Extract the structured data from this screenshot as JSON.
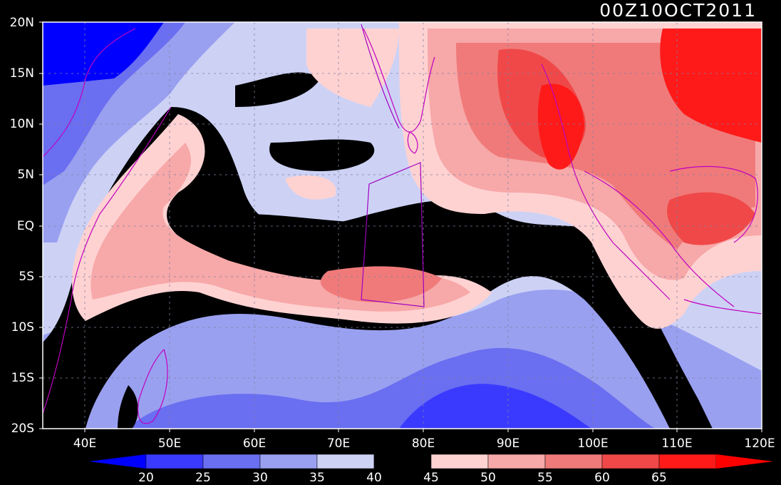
{
  "stamp": "00Z10OCT2011",
  "lat_labels": [
    "20N",
    "15N",
    "10N",
    "5N",
    "EQ",
    "5S",
    "10S",
    "15S",
    "20S"
  ],
  "lon_labels": [
    "40E",
    "50E",
    "60E",
    "70E",
    "80E",
    "90E",
    "100E",
    "110E",
    "120E"
  ],
  "colorbar": {
    "labels": [
      "20",
      "25",
      "30",
      "35",
      "40",
      "45",
      "50",
      "55",
      "60",
      "65"
    ],
    "colors": [
      "#0000ff",
      "#3a3aff",
      "#6a6ef0",
      "#9aa0f0",
      "#cdd2f5",
      "#000000",
      "#ffd2d2",
      "#f7a8a8",
      "#f07a7a",
      "#f04848",
      "#ff1a1a",
      "#ff0000"
    ]
  },
  "palette": {
    "deep_blue": "#0000ff",
    "blue": "#3a3aff",
    "mid_blue": "#6a6ef0",
    "light_blue": "#9aa0f0",
    "pale_blue": "#cdd2f5",
    "black": "#000000",
    "pale_red": "#ffd2d2",
    "light_red": "#f7a8a8",
    "mid_red": "#f07a7a",
    "red": "#f04848",
    "deep_red": "#ff1a1a",
    "coast": "#c000c0"
  }
}
